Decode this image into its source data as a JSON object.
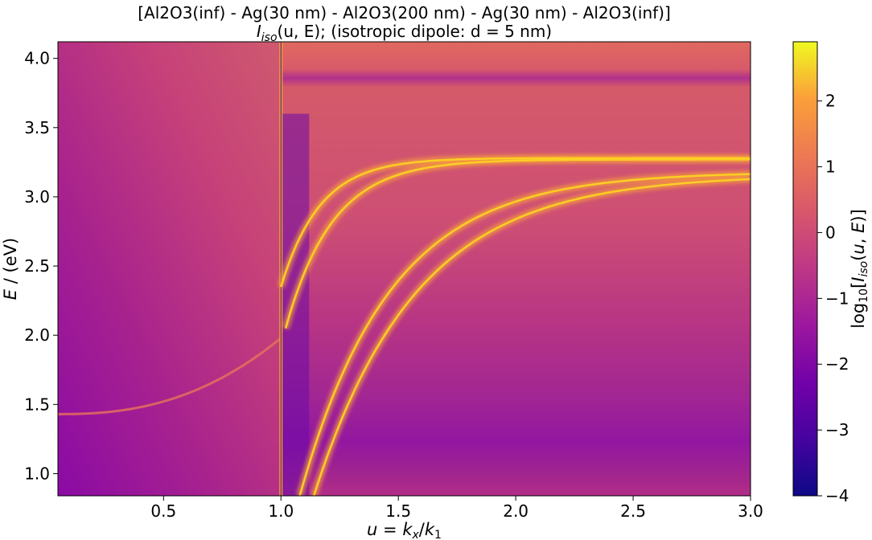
{
  "chart_data": {
    "type": "heatmap",
    "title_line1": "[Al2O3(inf) - Ag(30 nm) - Al2O3(200 nm) - Ag(30 nm) - Al2O3(inf)]",
    "title_line2_main": "I",
    "title_line2_sub": "iso",
    "title_line2_rest": "(u, E); (isotropic dipole: d = 5 nm)",
    "xlabel": "u = k_x/k_1",
    "ylabel": "E / (eV)",
    "colorbar_label": "log10[I_iso(u, E)]",
    "xlim": [
      0.05,
      3.0
    ],
    "ylim": [
      0.84,
      4.12
    ],
    "clim": [
      -4,
      2.9
    ],
    "colormap": "plasma",
    "x_ticks": [
      {
        "value": 0.5,
        "label": "0.5"
      },
      {
        "value": 1.0,
        "label": "1.0"
      },
      {
        "value": 1.5,
        "label": "1.5"
      },
      {
        "value": 2.0,
        "label": "2.0"
      },
      {
        "value": 2.5,
        "label": "2.5"
      },
      {
        "value": 3.0,
        "label": "3.0"
      }
    ],
    "y_ticks": [
      {
        "value": 1.0,
        "label": "1.0"
      },
      {
        "value": 1.5,
        "label": "1.5"
      },
      {
        "value": 2.0,
        "label": "2.0"
      },
      {
        "value": 2.5,
        "label": "2.5"
      },
      {
        "value": 3.0,
        "label": "3.0"
      },
      {
        "value": 3.5,
        "label": "3.5"
      },
      {
        "value": 4.0,
        "label": "4.0"
      }
    ],
    "colorbar_ticks": [
      {
        "value": 2,
        "label": "2"
      },
      {
        "value": 1,
        "label": "1"
      },
      {
        "value": 0,
        "label": "0"
      },
      {
        "value": -1,
        "label": "−1"
      },
      {
        "value": -2,
        "label": "−2"
      },
      {
        "value": -3,
        "label": "−3"
      },
      {
        "value": -4,
        "label": "−4"
      }
    ],
    "features": {
      "light_line_u": 1.0,
      "upper_mode_asymptote_eV": 3.28,
      "lower_mode_asymptote_eV": 3.18,
      "dark_band_eV": [
        3.7,
        1.18
      ],
      "left_mode_start_eV": 1.43
    }
  }
}
